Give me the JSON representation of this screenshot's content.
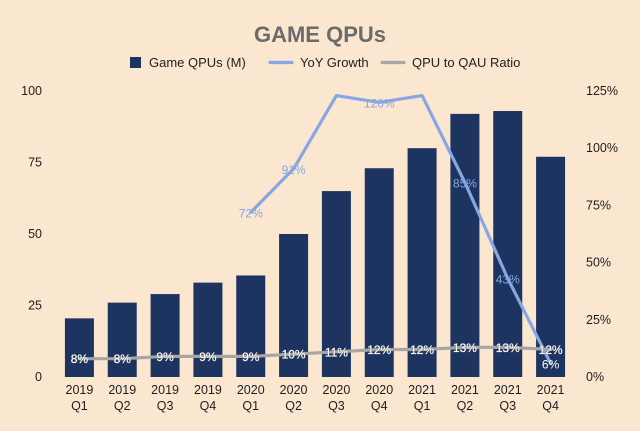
{
  "chart_data": {
    "type": "bar",
    "title": "GAME QPUs",
    "categories": [
      [
        "2019",
        "Q1"
      ],
      [
        "2019",
        "Q2"
      ],
      [
        "2019",
        "Q3"
      ],
      [
        "2019",
        "Q4"
      ],
      [
        "2020",
        "Q1"
      ],
      [
        "2020",
        "Q2"
      ],
      [
        "2020",
        "Q3"
      ],
      [
        "2020",
        "Q4"
      ],
      [
        "2021",
        "Q1"
      ],
      [
        "2021",
        "Q2"
      ],
      [
        "2021",
        "Q3"
      ],
      [
        "2021",
        "Q4"
      ]
    ],
    "ylim_left": [
      0,
      100
    ],
    "ylim_right": [
      0,
      125
    ],
    "left_ticks": [
      "0",
      "25",
      "50",
      "75",
      "100"
    ],
    "right_ticks": [
      "0%",
      "25%",
      "50%",
      "75%",
      "100%",
      "125%"
    ],
    "grid": false,
    "legend_position": "top",
    "series": [
      {
        "name": "Game QPUs (M)",
        "type": "bar",
        "axis": "left",
        "color": "#1d3461",
        "values": [
          20.5,
          26,
          29,
          33,
          35.5,
          50,
          65,
          73,
          80,
          92,
          93,
          77
        ]
      },
      {
        "name": "YoY Growth",
        "type": "line",
        "axis": "right",
        "color": "#86a7e3",
        "values": [
          null,
          null,
          null,
          null,
          72,
          91,
          123,
          120,
          123,
          85,
          43,
          6
        ],
        "labels": [
          "",
          "",
          "",
          "",
          "72%",
          "91%",
          "",
          "120%",
          "",
          "85%",
          "43%",
          "6%"
        ]
      },
      {
        "name": "QPU to QAU Ratio",
        "type": "line",
        "axis": "right",
        "color": "#a6a6a6",
        "values": [
          8,
          8,
          9,
          9,
          9,
          10,
          11,
          12,
          12,
          13,
          13,
          12
        ],
        "labels": [
          "8%",
          "8%",
          "9%",
          "9%",
          "9%",
          "10%",
          "11%",
          "12%",
          "12%",
          "13%",
          "13%",
          "12%"
        ]
      }
    ]
  }
}
